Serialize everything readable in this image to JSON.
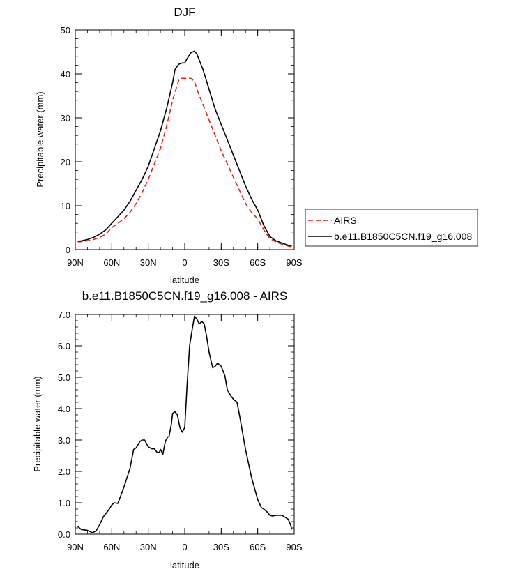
{
  "chart_data": [
    {
      "type": "line",
      "title": "DJF",
      "xlabel": "latitude",
      "ylabel": "Precipitable water (mm)",
      "xlim": [
        90,
        -90
      ],
      "ylim": [
        0,
        50
      ],
      "xticks": [
        90,
        60,
        30,
        0,
        -30,
        -60,
        -90
      ],
      "xtick_labels": [
        "90N",
        "60N",
        "30N",
        "0",
        "30S",
        "60S",
        "90S"
      ],
      "yticks": [
        0,
        10,
        20,
        30,
        40,
        50
      ],
      "ytick_labels": [
        "0",
        "10",
        "20",
        "30",
        "40",
        "50"
      ],
      "legend": "outside-right",
      "series": [
        {
          "name": "AIRS",
          "color": "#e8201a",
          "dash": "dashed",
          "x": [
            88,
            85,
            80,
            75,
            70,
            65,
            60,
            55,
            50,
            45,
            40,
            35,
            30,
            25,
            20,
            15,
            10,
            5,
            3,
            0,
            -5,
            -8,
            -10,
            -15,
            -20,
            -25,
            -30,
            -35,
            -40,
            -45,
            -50,
            -55,
            -60,
            -65,
            -70,
            -75,
            -80,
            -85,
            -88
          ],
          "y": [
            1.8,
            1.8,
            2.0,
            2.3,
            2.8,
            3.5,
            5.0,
            6.0,
            7.0,
            8.5,
            10.5,
            13.0,
            16.0,
            19.5,
            23.0,
            28.0,
            34.0,
            38.5,
            39.0,
            39.0,
            39.0,
            38.3,
            36.5,
            33.0,
            29.5,
            26.0,
            22.5,
            19.5,
            16.5,
            13.5,
            10.5,
            8.5,
            7.0,
            4.5,
            2.5,
            1.8,
            1.2,
            0.8,
            0.6
          ]
        },
        {
          "name": "b.e11.B1850C5CN.f19_g16.008",
          "color": "#000000",
          "dash": "solid",
          "x": [
            88,
            85,
            80,
            75,
            70,
            65,
            60,
            55,
            50,
            45,
            40,
            35,
            30,
            25,
            20,
            15,
            10,
            8,
            5,
            2,
            0,
            -2,
            -5,
            -8,
            -10,
            -15,
            -20,
            -25,
            -30,
            -35,
            -40,
            -45,
            -50,
            -55,
            -60,
            -65,
            -70,
            -75,
            -80,
            -85,
            -88
          ],
          "y": [
            1.9,
            2.0,
            2.3,
            2.8,
            3.5,
            4.5,
            6.0,
            7.5,
            9.0,
            11.0,
            13.5,
            16.0,
            19.0,
            23.0,
            27.0,
            32.0,
            38.0,
            41.0,
            42.2,
            42.5,
            42.5,
            43.5,
            44.8,
            45.2,
            44.5,
            41.0,
            36.5,
            32.0,
            28.5,
            25.0,
            21.5,
            18.0,
            14.5,
            11.5,
            9.0,
            5.5,
            3.0,
            2.0,
            1.5,
            1.0,
            0.8
          ]
        }
      ]
    },
    {
      "type": "line",
      "title": "b.e11.B1850C5CN.f19_g16.008 - AIRS",
      "xlabel": "latitude",
      "ylabel": "Precipitable water (mm)",
      "xlim": [
        90,
        -90
      ],
      "ylim": [
        0,
        7
      ],
      "xticks": [
        90,
        60,
        30,
        0,
        -30,
        -60,
        -90
      ],
      "xtick_labels": [
        "90N",
        "60N",
        "30N",
        "0",
        "30S",
        "60S",
        "90S"
      ],
      "yticks": [
        0,
        1,
        2,
        3,
        4,
        5,
        6,
        7
      ],
      "ytick_labels": [
        "0.0",
        "1.0",
        "2.0",
        "3.0",
        "4.0",
        "5.0",
        "6.0",
        "7.0"
      ],
      "series": [
        {
          "color": "#000000",
          "dash": "solid",
          "x": [
            88,
            85,
            80,
            76,
            73,
            70,
            67,
            65,
            62,
            60,
            58,
            55,
            50,
            45,
            42,
            40,
            37,
            35,
            33,
            30,
            27,
            25,
            23,
            21,
            20,
            18,
            16,
            14,
            13,
            11,
            10,
            8,
            6,
            4,
            2,
            0,
            -2,
            -4,
            -6,
            -8,
            -10,
            -12,
            -14,
            -16,
            -18,
            -20,
            -23,
            -25,
            -27,
            -30,
            -33,
            -35,
            -38,
            -40,
            -43,
            -45,
            -50,
            -55,
            -60,
            -63,
            -65,
            -68,
            -70,
            -72,
            -75,
            -80,
            -85,
            -87,
            -88
          ],
          "y": [
            0.25,
            0.15,
            0.12,
            0.05,
            0.1,
            0.3,
            0.55,
            0.65,
            0.8,
            0.93,
            1.0,
            0.98,
            1.5,
            2.1,
            2.7,
            2.75,
            2.95,
            3.0,
            3.0,
            2.78,
            2.72,
            2.72,
            2.62,
            2.6,
            2.7,
            2.55,
            2.95,
            3.1,
            3.1,
            3.5,
            3.85,
            3.9,
            3.8,
            3.4,
            3.25,
            3.4,
            4.8,
            6.0,
            6.5,
            6.95,
            6.85,
            6.7,
            6.78,
            6.7,
            6.3,
            5.8,
            5.3,
            5.35,
            5.45,
            5.35,
            5.05,
            4.6,
            4.4,
            4.3,
            4.2,
            3.8,
            2.7,
            1.8,
            1.1,
            0.85,
            0.8,
            0.7,
            0.6,
            0.58,
            0.6,
            0.6,
            0.48,
            0.3,
            0.15
          ]
        }
      ]
    }
  ]
}
